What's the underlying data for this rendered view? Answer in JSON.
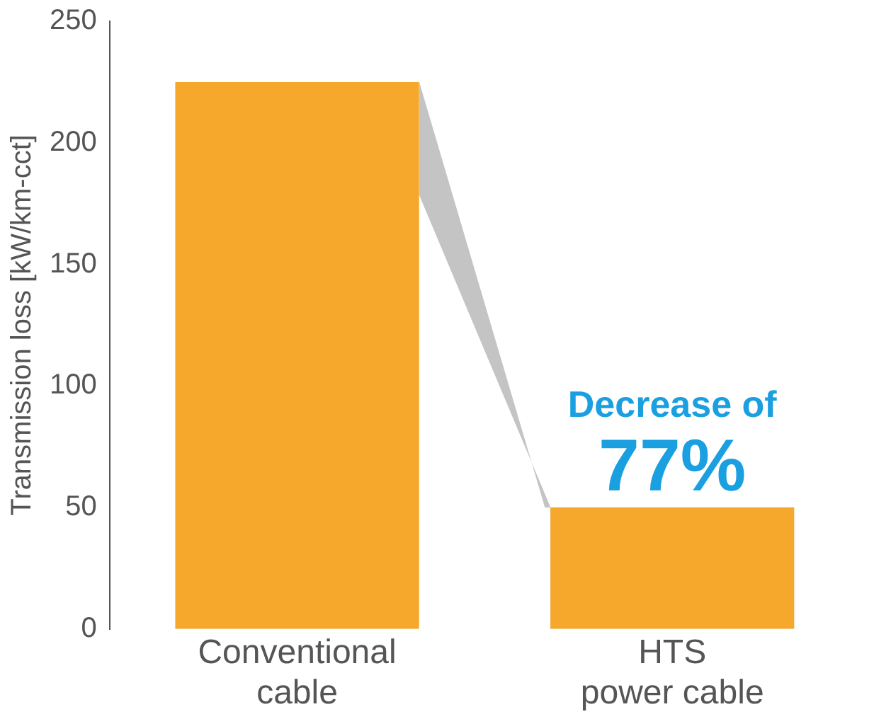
{
  "chart_data": {
    "type": "bar",
    "ylabel": "Transmission loss [kW/km-cct]",
    "categories": [
      "Conventional cable",
      "HTS power cable"
    ],
    "values": [
      225,
      50
    ],
    "color": "#f5a82c",
    "ylim": [
      0,
      250
    ],
    "yticks": [
      0,
      50,
      100,
      150,
      200,
      250
    ],
    "grid": false,
    "legend": false,
    "annotations": [
      "Decrease of",
      "77%"
    ]
  }
}
